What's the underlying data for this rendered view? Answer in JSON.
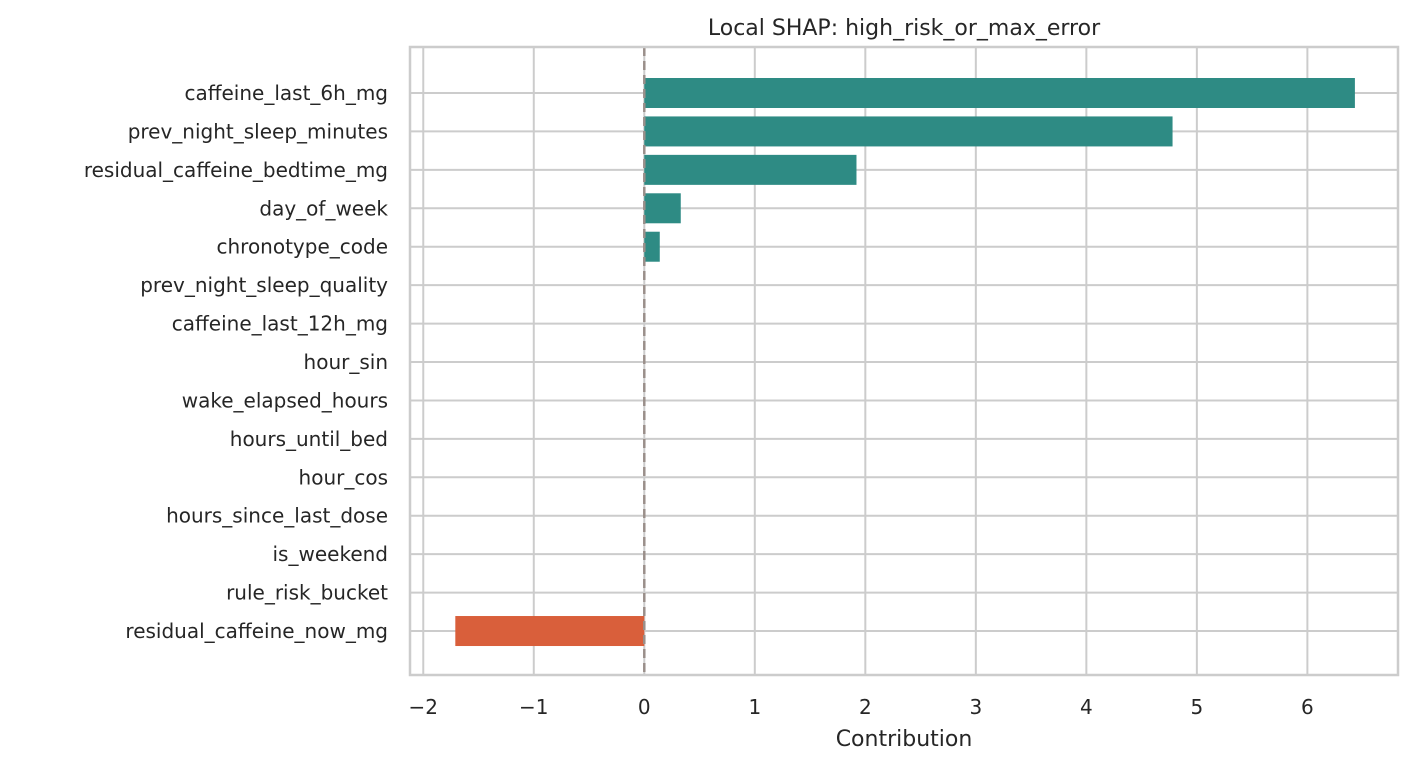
{
  "chart_data": {
    "type": "bar",
    "orientation": "horizontal",
    "title": "Local SHAP: high_risk_or_max_error",
    "xlabel": "Contribution",
    "ylabel": "",
    "xlim": [
      -2.12,
      6.82
    ],
    "xticks": [
      -2,
      -1,
      0,
      1,
      2,
      3,
      4,
      5,
      6
    ],
    "xtick_labels": [
      "−2",
      "−1",
      "0",
      "1",
      "2",
      "3",
      "4",
      "5",
      "6"
    ],
    "grid": true,
    "reference_line": {
      "x": 0,
      "style": "dashed",
      "color": "#9a8f8a"
    },
    "positive_color": "#2e8b84",
    "negative_color": "#d95f3b",
    "categories": [
      "caffeine_last_6h_mg",
      "prev_night_sleep_minutes",
      "residual_caffeine_bedtime_mg",
      "day_of_week",
      "chronotype_code",
      "prev_night_sleep_quality",
      "caffeine_last_12h_mg",
      "hour_sin",
      "wake_elapsed_hours",
      "hours_until_bed",
      "hour_cos",
      "hours_since_last_dose",
      "is_weekend",
      "rule_risk_bucket",
      "residual_caffeine_now_mg"
    ],
    "values": [
      6.43,
      4.78,
      1.92,
      0.33,
      0.14,
      0,
      0,
      0,
      0,
      0,
      0,
      0,
      0,
      0,
      -1.71
    ]
  }
}
